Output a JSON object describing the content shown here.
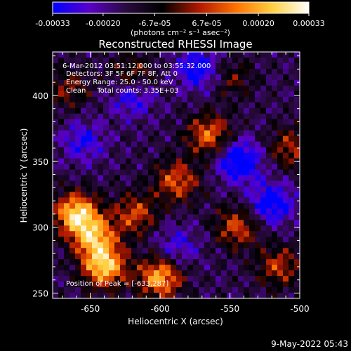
{
  "chart_data": {
    "type": "heatmap",
    "title": "Reconstructed RHESSI Image",
    "xlabel": "Heliocentric X (arcsec)",
    "ylabel": "Heliocentric Y (arcsec)",
    "xlim": [
      -677,
      -500
    ],
    "ylim": [
      246,
      433
    ],
    "x_ticks": [
      -650,
      -600,
      -550,
      -500
    ],
    "y_ticks": [
      250,
      300,
      350,
      400
    ],
    "x_tick_labels": [
      "-650",
      "-600",
      "-550",
      "-500"
    ],
    "y_tick_labels": [
      "250",
      "300",
      "350",
      "400"
    ],
    "annotations": [
      "6-Mar-2012 03:51:12.000 to 03:55:32.000",
      "Detectors: 3F 5F 6F 7F 8F, Att 0",
      "Energy Range: 25.0 - 50.0 keV",
      "Clean     Total counts: 3.35E+03"
    ],
    "peak_label": "Position of Peak = [-633,287]",
    "peak": [
      -633,
      287
    ],
    "colorbar": {
      "range": [
        -0.00033,
        0.00033
      ],
      "tick_values": [
        -0.00033,
        -0.0002,
        -6.7e-05,
        6.7e-05,
        0.0002,
        0.00033
      ],
      "tick_labels": [
        "-0.00033",
        "-0.00020",
        "-6.7e-05",
        "6.7e-05",
        "0.00020",
        "0.00033"
      ],
      "unit_label": "(photons cm⁻² s⁻¹ asec⁻²)",
      "colors": [
        "#0000ff",
        "#5a00c8",
        "#2a0a40",
        "#000000",
        "#b01800",
        "#ff7000",
        "#ffd040",
        "#ffffff"
      ]
    },
    "blobs": [
      {
        "x": -660,
        "y": 310,
        "amp": 1.0
      },
      {
        "x": -640,
        "y": 270,
        "amp": 0.95
      },
      {
        "x": -647,
        "y": 292,
        "amp": 0.8
      },
      {
        "x": -618,
        "y": 310,
        "amp": 0.55
      },
      {
        "x": -600,
        "y": 262,
        "amp": 0.85
      },
      {
        "x": -588,
        "y": 335,
        "amp": 0.6
      },
      {
        "x": -565,
        "y": 370,
        "amp": 0.65
      },
      {
        "x": -545,
        "y": 300,
        "amp": 0.55
      },
      {
        "x": -515,
        "y": 270,
        "amp": 0.5
      },
      {
        "x": -507,
        "y": 360,
        "amp": 0.45
      },
      {
        "x": -620,
        "y": 415,
        "amp": 0.45
      },
      {
        "x": -548,
        "y": 413,
        "amp": 0.3
      },
      {
        "x": -666,
        "y": 405,
        "amp": 0.35
      },
      {
        "x": -573,
        "y": 420,
        "amp": -0.55
      },
      {
        "x": -543,
        "y": 350,
        "amp": -0.7
      },
      {
        "x": -620,
        "y": 400,
        "amp": -0.5
      },
      {
        "x": -655,
        "y": 365,
        "amp": -0.4
      },
      {
        "x": -520,
        "y": 318,
        "amp": -0.6
      },
      {
        "x": -588,
        "y": 285,
        "amp": -0.35
      }
    ]
  },
  "footer": {
    "date": "9-May-2022 05:43"
  }
}
